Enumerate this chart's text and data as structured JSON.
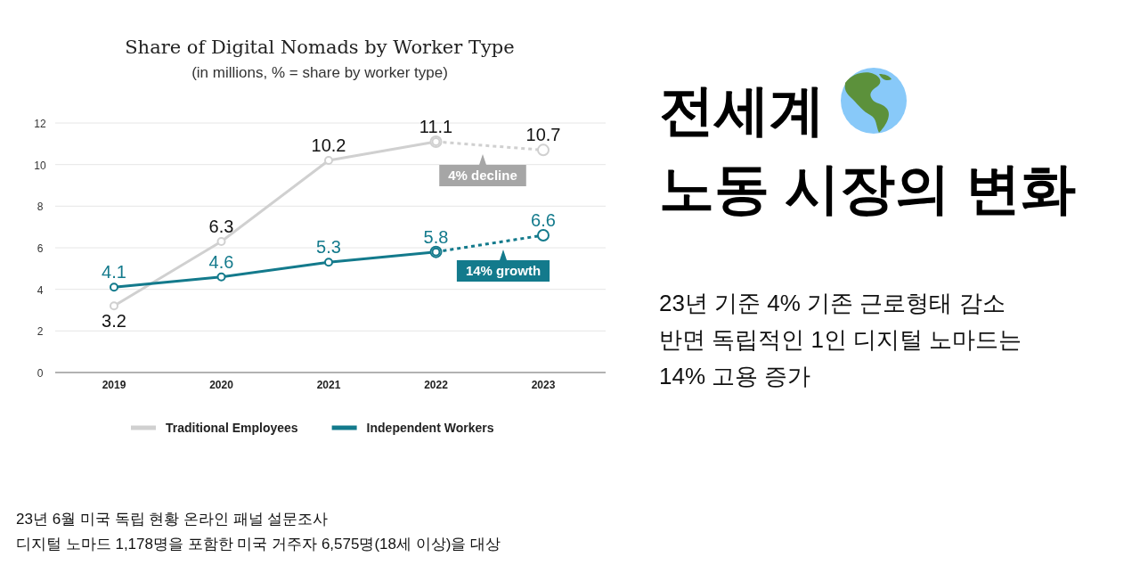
{
  "chart_data": {
    "type": "line",
    "title": "Share of Digital Nomads by Worker Type",
    "subtitle": "(in millions, % = share by worker type)",
    "categories": [
      "2019",
      "2020",
      "2021",
      "2022",
      "2023"
    ],
    "series": [
      {
        "name": "Traditional Employees",
        "color": "#d0d0d0",
        "values": [
          3.2,
          6.3,
          10.2,
          11.1,
          null
        ],
        "value_labels": [
          "3.2",
          "6.3",
          "10.2",
          "11.1",
          null
        ]
      },
      {
        "color": "#d0d0d0",
        "line_style": "dashed",
        "values": [
          null,
          null,
          null,
          11.1,
          10.7
        ],
        "value_labels": [
          null,
          null,
          null,
          null,
          "10.7"
        ]
      },
      {
        "name": "Independent Workers",
        "color": "#137a8c",
        "values": [
          4.1,
          4.6,
          5.3,
          5.8,
          null
        ],
        "value_labels": [
          "4.1",
          "4.6",
          "5.3",
          "5.8",
          null
        ]
      },
      {
        "color": "#137a8c",
        "line_style": "dashed",
        "values": [
          null,
          null,
          null,
          5.8,
          6.6
        ],
        "value_labels": [
          null,
          null,
          null,
          null,
          "6.6"
        ]
      }
    ],
    "ylim": [
      0,
      12
    ],
    "yticks": [
      0,
      2,
      4,
      6,
      8,
      10,
      12
    ],
    "grid": "y",
    "marker": "circle",
    "legend": "bottom",
    "annotations": [
      "4% decline",
      "14% growth",
      "전세계",
      "노동 시장의 변화",
      "23년 기준 4% 기존 근로형태 감소",
      "반면 독립적인 1인 디지털 노마드는",
      "14% 고용 증가",
      "23년 6월 미국 독립 현황 온라인 패널 설문조사",
      "디지털 노마드 1,178명을 포함한 미국 거주자 6,575명(18세 이상)을 대상"
    ]
  }
}
